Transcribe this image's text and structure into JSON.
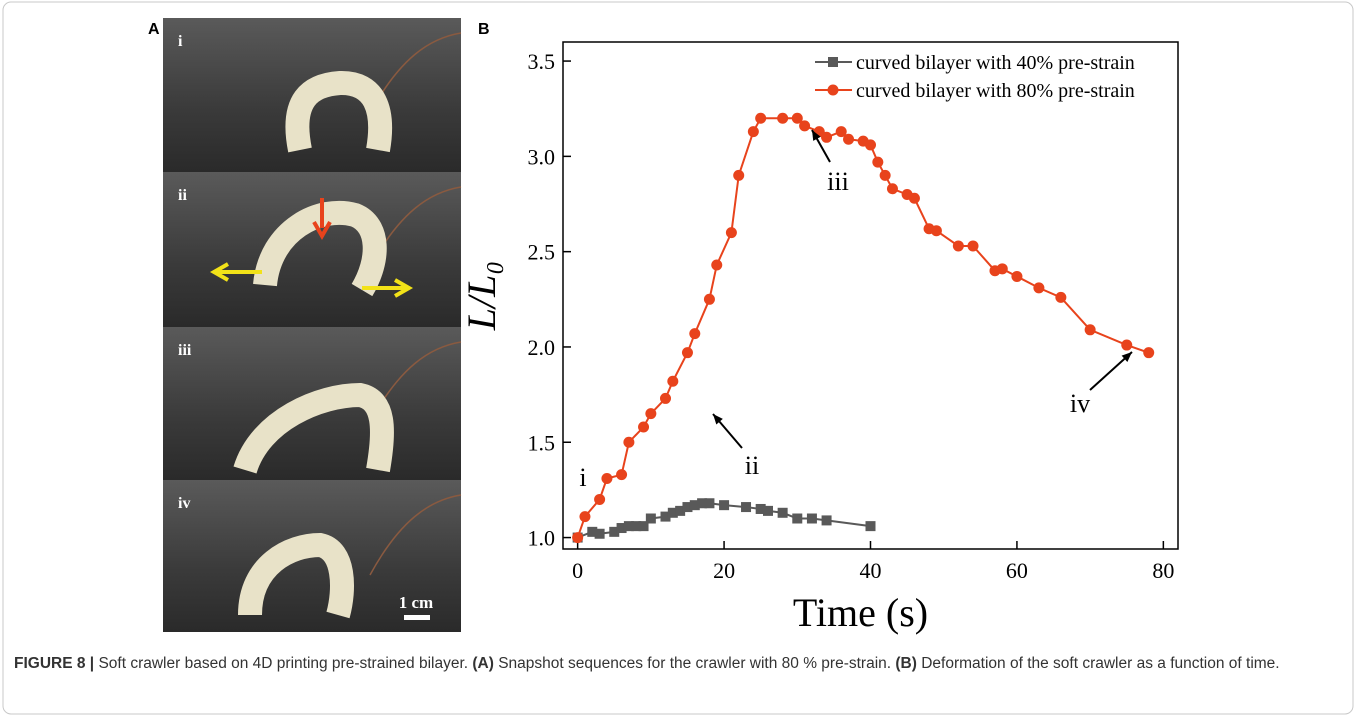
{
  "panel_a": {
    "label": "A",
    "photo_labels": [
      "i",
      "ii",
      "iii",
      "iv"
    ],
    "scale_bar": "1 cm"
  },
  "chart_data": {
    "type": "line",
    "panel_label": "B",
    "xlabel": "Time (s)",
    "ylabel": "L/L₀",
    "xlim": [
      -2,
      82
    ],
    "ylim": [
      0.94,
      3.6
    ],
    "xticks": [
      0,
      20,
      40,
      60,
      80
    ],
    "yticks": [
      {
        "value": 1.0,
        "label": "1.0"
      },
      {
        "value": 1.5,
        "label": "1.5"
      },
      {
        "value": 2.0,
        "label": "2.0"
      },
      {
        "value": 2.5,
        "label": "2.5"
      },
      {
        "value": 3.0,
        "label": "3.0"
      },
      {
        "value": 3.5,
        "label": "3.5"
      }
    ],
    "legend": "upper right",
    "series": [
      {
        "name": "curved bilayer with 40% pre-strain",
        "color": "#595959",
        "marker": "square",
        "x": [
          0,
          2,
          3,
          5,
          6,
          7,
          8,
          9,
          10,
          12,
          13,
          14,
          15,
          16,
          17,
          18,
          20,
          23,
          25,
          26,
          28,
          30,
          32,
          34,
          40
        ],
        "values": [
          1.0,
          1.03,
          1.02,
          1.03,
          1.05,
          1.06,
          1.06,
          1.06,
          1.1,
          1.11,
          1.13,
          1.14,
          1.16,
          1.17,
          1.18,
          1.18,
          1.17,
          1.16,
          1.15,
          1.14,
          1.13,
          1.1,
          1.1,
          1.09,
          1.06
        ]
      },
      {
        "name": "curved bilayer with 80% pre-strain",
        "color": "#e8431c",
        "marker": "circle",
        "x": [
          0,
          1,
          3,
          4,
          6,
          7,
          9,
          10,
          12,
          13,
          15,
          16,
          18,
          19,
          21,
          22,
          24,
          25,
          28,
          30,
          31,
          33,
          34,
          36,
          37,
          39,
          40,
          41,
          42,
          43,
          45,
          46,
          48,
          49,
          52,
          54,
          57,
          58,
          60,
          63,
          66,
          70,
          75,
          78
        ],
        "values": [
          1.0,
          1.11,
          1.2,
          1.31,
          1.33,
          1.5,
          1.58,
          1.65,
          1.73,
          1.82,
          1.97,
          2.07,
          2.25,
          2.43,
          2.6,
          2.9,
          3.13,
          3.2,
          3.2,
          3.2,
          3.16,
          3.13,
          3.1,
          3.13,
          3.09,
          3.08,
          3.06,
          2.97,
          2.9,
          2.83,
          2.8,
          2.78,
          2.62,
          2.61,
          2.53,
          2.53,
          2.4,
          2.41,
          2.37,
          2.31,
          2.26,
          2.09,
          2.01,
          1.97
        ]
      }
    ],
    "annotations": [
      "i",
      "ii",
      "iii",
      "iv"
    ]
  },
  "caption": {
    "label": "FIGURE 8 |",
    "text": " Soft crawler based on 4D printing pre-strained bilayer. ",
    "a_label": "(A)",
    "a_text": " Snapshot sequences for the crawler with 80 % pre-strain. ",
    "b_label": "(B)",
    "b_text": " Deformation of the soft crawler as a function of time."
  }
}
